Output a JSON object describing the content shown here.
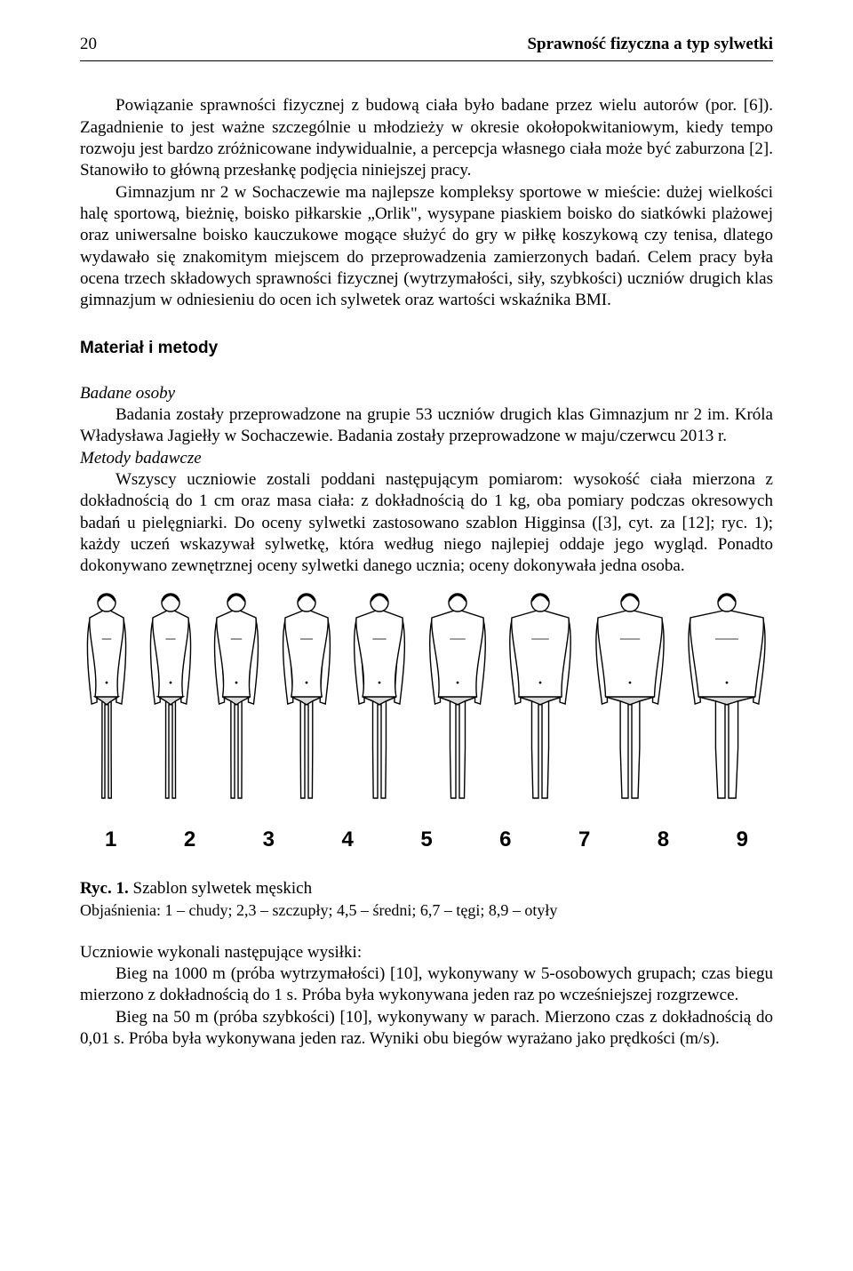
{
  "header": {
    "page_number": "20",
    "running_title": "Sprawność fizyczna a typ sylwetki"
  },
  "paragraphs": {
    "p1": "Powiązanie sprawności fizycznej z budową ciała było badane przez wielu autorów (por. [6]). Zagadnienie to jest ważne szczególnie u młodzieży w okresie okołopokwitaniowym, kiedy tempo rozwoju jest bardzo zróżnicowane indywidualnie, a percepcja własnego ciała może być zaburzona [2]. Stanowiło to główną przesłankę podjęcia niniejszej pracy.",
    "p2": "Gimnazjum nr 2 w Sochaczewie ma najlepsze kompleksy sportowe w mieście: dużej wielkości halę sportową, bieżnię, boisko piłkarskie „Orlik\", wysypane piaskiem boisko do siatkówki plażowej oraz uniwersalne boisko kauczukowe mogące służyć do gry w piłkę koszykową czy tenisa, dlatego wydawało się znakomitym miejscem do przeprowadzenia zamierzonych badań. Celem pracy była ocena trzech składowych sprawności fizycznej (wytrzymałości, siły, szybkości) uczniów drugich klas gimnazjum w odniesieniu do ocen ich sylwetek oraz wartości wskaźnika BMI."
  },
  "section_heading": "Materiał i metody",
  "sub1_heading": "Badane osoby",
  "sub1_text": "Badania zostały przeprowadzone na grupie 53 uczniów drugich klas Gimnazjum nr 2 im. Króla Władysława Jagiełły w Sochaczewie. Badania zostały przeprowadzone w maju/czerwcu 2013 r.",
  "sub2_heading": "Metody badawcze",
  "sub2_text": "Wszyscy uczniowie zostali poddani następującym pomiarom: wysokość ciała mierzona z dokładnością do 1 cm oraz masa ciała: z dokładnością do 1 kg, oba pomiary podczas okresowych badań u pielęgniarki. Do oceny sylwetki zastosowano szablon Higginsa ([3], cyt. za [12]; ryc. 1); każdy uczeń wskazywał sylwetkę, która według niego najlepiej oddaje jego wygląd. Ponadto dokonywano zewnętrznej oceny sylwetki danego ucznia; oceny dokonywała jedna osoba.",
  "figure": {
    "numbers": [
      "1",
      "2",
      "3",
      "4",
      "5",
      "6",
      "7",
      "8",
      "9"
    ],
    "body_widths": [
      30,
      32,
      36,
      40,
      44,
      50,
      56,
      64,
      74
    ],
    "fig_height": 240,
    "stroke": "#000000",
    "fill": "#ffffff"
  },
  "caption": {
    "label": "Ryc. 1.",
    "title": " Szablon sylwetek męskich",
    "subtitle": "Objaśnienia: 1 – chudy; 2,3 – szczupły; 4,5 – średni; 6,7 – tęgi; 8,9 – otyły"
  },
  "after_fig": {
    "lead": "Uczniowie wykonali następujące wysiłki:",
    "item1": "Bieg na 1000 m (próba wytrzymałości) [10], wykonywany w 5-osobowych grupach; czas biegu mierzono z dokładnością do 1 s. Próba była wykonywana jeden raz po wcześniejszej rozgrzewce.",
    "item2": "Bieg na 50 m (próba szybkości) [10], wykonywany w parach. Mierzono czas z dokładnością do 0,01 s. Próba była wykonywana jeden raz. Wyniki obu biegów wyrażano jako prędkości (m/s)."
  }
}
